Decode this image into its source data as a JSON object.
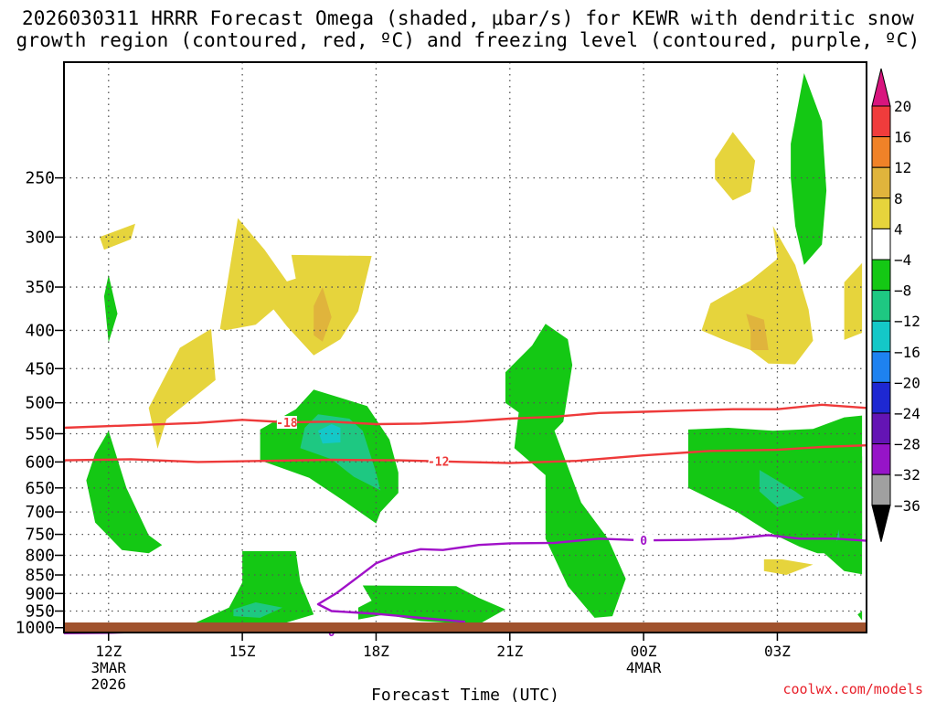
{
  "title_line1": "2026030311 HRRR Forecast Omega (shaded, μbar/s) for KEWR with dendritic snow",
  "title_line2": "growth region (contoured, red, ºC) and freezing level (contoured, purple, ºC)",
  "credit": "coolwx.com/models",
  "chart_data": {
    "type": "heatmap",
    "title": "2026030311 HRRR Forecast Omega (shaded, μbar/s) for KEWR with dendritic snow growth region (contoured, red, ºC) and freezing level (contoured, purple, ºC)",
    "xlabel": "Forecast Time (UTC)",
    "ylabel": "",
    "x_range_hours_after_12Z": [
      -1,
      17
    ],
    "y_range_hPa": [
      1015,
      175
    ],
    "x_ticks": [
      {
        "hour": 0,
        "label": "12Z",
        "sub1": "3MAR",
        "sub2": "2026"
      },
      {
        "hour": 3,
        "label": "15Z",
        "sub1": "",
        "sub2": ""
      },
      {
        "hour": 6,
        "label": "18Z",
        "sub1": "",
        "sub2": ""
      },
      {
        "hour": 9,
        "label": "21Z",
        "sub1": "",
        "sub2": ""
      },
      {
        "hour": 12,
        "label": "00Z",
        "sub1": "4MAR",
        "sub2": ""
      },
      {
        "hour": 15,
        "label": "03Z",
        "sub1": "",
        "sub2": ""
      }
    ],
    "y_ticks": [
      250,
      300,
      350,
      400,
      450,
      500,
      550,
      600,
      650,
      700,
      750,
      800,
      850,
      900,
      950,
      1000
    ],
    "colorbar": {
      "labels": [
        "20",
        "16",
        "12",
        "8",
        "4",
        "−4",
        "−8",
        "−12",
        "−16",
        "−20",
        "−24",
        "−28",
        "−32",
        "−36"
      ],
      "colors": [
        "#d8157e",
        "#f03c3c",
        "#f08228",
        "#e0b43c",
        "#e6d43c",
        "#ffffff",
        "#14c814",
        "#1ec882",
        "#14c8c8",
        "#1e82f0",
        "#1e28d2",
        "#6414b4",
        "#9614c8",
        "#a0a0a0",
        "#000000"
      ]
    },
    "omega_regions": [
      {
        "level": "4 to 8",
        "color": "#e6d43c",
        "points": [
          [
            -0.1,
            312
          ],
          [
            0.5,
            302
          ],
          [
            0.6,
            288
          ],
          [
            -0.2,
            300
          ]
        ]
      },
      {
        "level": "4 to 8",
        "color": "#e6d43c",
        "points": [
          [
            0.9,
            508
          ],
          [
            1.6,
            422
          ],
          [
            2.3,
            398
          ],
          [
            2.4,
            466
          ],
          [
            1.3,
            526
          ],
          [
            1.1,
            576
          ]
        ]
      },
      {
        "level": "4 to 8",
        "color": "#e6d43c",
        "points": [
          [
            2.5,
            398
          ],
          [
            2.9,
            283
          ],
          [
            3.5,
            312
          ],
          [
            4.0,
            344
          ],
          [
            4.2,
            341
          ],
          [
            4.1,
            317
          ],
          [
            5.9,
            318
          ],
          [
            5.6,
            377
          ],
          [
            5.2,
            411
          ],
          [
            4.6,
            432
          ],
          [
            4.0,
            395
          ],
          [
            3.7,
            375
          ],
          [
            3.3,
            393
          ],
          [
            2.6,
            400
          ]
        ]
      },
      {
        "level": "8 to 12",
        "color": "#e0b43c",
        "points": [
          [
            4.6,
            371
          ],
          [
            4.8,
            350
          ],
          [
            5.0,
            384
          ],
          [
            4.8,
            414
          ],
          [
            4.6,
            406
          ]
        ]
      },
      {
        "level": "4 to 8",
        "color": "#e6d43c",
        "points": [
          [
            13.6,
            236
          ],
          [
            14.0,
            217
          ],
          [
            14.5,
            237
          ],
          [
            14.4,
            261
          ],
          [
            14.0,
            268
          ],
          [
            13.6,
            251
          ]
        ]
      },
      {
        "level": "4 to 8",
        "color": "#e6d43c",
        "points": [
          [
            13.3,
            400
          ],
          [
            13.5,
            368
          ],
          [
            14.4,
            343
          ],
          [
            15.0,
            321
          ],
          [
            14.9,
            290
          ],
          [
            15.4,
            327
          ],
          [
            15.7,
            375
          ],
          [
            15.8,
            413
          ],
          [
            15.4,
            444
          ],
          [
            14.8,
            443
          ],
          [
            14.4,
            425
          ],
          [
            13.8,
            412
          ]
        ]
      },
      {
        "level": "8 to 12",
        "color": "#e0b43c",
        "points": [
          [
            14.3,
            380
          ],
          [
            14.7,
            387
          ],
          [
            14.8,
            425
          ],
          [
            14.4,
            425
          ],
          [
            14.4,
            400
          ]
        ]
      },
      {
        "level": "4 to 8",
        "color": "#e6d43c",
        "points": [
          [
            16.5,
            412
          ],
          [
            16.5,
            345
          ],
          [
            16.9,
            325
          ],
          [
            16.9,
            403
          ]
        ]
      },
      {
        "level": "4 to 8",
        "color": "#e6d43c",
        "points": [
          [
            14.7,
            810
          ],
          [
            15.1,
            810
          ],
          [
            15.8,
            823
          ],
          [
            15.2,
            850
          ],
          [
            14.7,
            840
          ]
        ]
      },
      {
        "level": "-4 to -8",
        "color": "#14c814",
        "points": [
          [
            -0.1,
            360
          ],
          [
            0.0,
            337
          ],
          [
            0.2,
            380
          ],
          [
            0.0,
            415
          ]
        ]
      },
      {
        "level": "-4 to -8",
        "color": "#14c814",
        "points": [
          [
            -0.5,
            635
          ],
          [
            -0.3,
            585
          ],
          [
            0.0,
            545
          ],
          [
            0.4,
            650
          ],
          [
            0.9,
            752
          ],
          [
            1.2,
            775
          ],
          [
            0.9,
            795
          ],
          [
            0.3,
            787
          ],
          [
            -0.3,
            723
          ]
        ]
      },
      {
        "level": "-4 to -8",
        "color": "#14c814",
        "points": [
          [
            3.4,
            543
          ],
          [
            4.2,
            510
          ],
          [
            4.6,
            480
          ],
          [
            5.8,
            505
          ],
          [
            6.3,
            560
          ],
          [
            6.5,
            620
          ],
          [
            6.5,
            660
          ],
          [
            6.1,
            700
          ],
          [
            6.0,
            725
          ],
          [
            5.3,
            678
          ],
          [
            4.5,
            630
          ],
          [
            3.4,
            597
          ]
        ]
      },
      {
        "level": "-8 to -12",
        "color": "#1ec882",
        "points": [
          [
            4.4,
            540
          ],
          [
            4.7,
            518
          ],
          [
            5.4,
            525
          ],
          [
            5.7,
            545
          ],
          [
            6.0,
            620
          ],
          [
            6.1,
            655
          ],
          [
            5.5,
            628
          ],
          [
            5.0,
            595
          ],
          [
            4.3,
            575
          ]
        ]
      },
      {
        "level": "-12 to -16",
        "color": "#14c8c8",
        "points": [
          [
            4.7,
            545
          ],
          [
            5.0,
            534
          ],
          [
            5.2,
            540
          ],
          [
            5.2,
            565
          ],
          [
            4.8,
            567
          ]
        ]
      },
      {
        "level": "-4 to -8",
        "color": "#14c814",
        "points": [
          [
            1.7,
            1000
          ],
          [
            2.7,
            940
          ],
          [
            3.0,
            870
          ],
          [
            3.0,
            790
          ],
          [
            4.2,
            790
          ],
          [
            4.3,
            868
          ],
          [
            4.6,
            960
          ],
          [
            3.6,
            1000
          ],
          [
            3.2,
            988
          ],
          [
            2.7,
            1005
          ],
          [
            2.0,
            1005
          ]
        ]
      },
      {
        "level": "-8 to -12",
        "color": "#1ec882",
        "points": [
          [
            2.8,
            945
          ],
          [
            3.3,
            925
          ],
          [
            3.9,
            940
          ],
          [
            3.4,
            970
          ],
          [
            2.8,
            965
          ]
        ]
      },
      {
        "level": "-4 to -8",
        "color": "#14c814",
        "points": [
          [
            5.7,
            878
          ],
          [
            7.8,
            880
          ],
          [
            8.3,
            912
          ],
          [
            8.9,
            945
          ],
          [
            8.3,
            990
          ],
          [
            7.0,
            980
          ],
          [
            6.2,
            960
          ],
          [
            5.6,
            975
          ],
          [
            5.6,
            940
          ],
          [
            5.9,
            920
          ]
        ]
      },
      {
        "level": "-4 to -8",
        "color": "#14c814",
        "points": [
          [
            8.9,
            455
          ],
          [
            9.5,
            419
          ],
          [
            9.8,
            392
          ],
          [
            10.3,
            411
          ],
          [
            10.4,
            445
          ],
          [
            10.2,
            530
          ],
          [
            10.0,
            545
          ],
          [
            10.6,
            680
          ],
          [
            11.2,
            760
          ],
          [
            11.6,
            860
          ],
          [
            11.3,
            965
          ],
          [
            10.9,
            970
          ],
          [
            10.3,
            880
          ],
          [
            9.8,
            760
          ],
          [
            9.8,
            700
          ],
          [
            9.8,
            625
          ],
          [
            9.1,
            575
          ],
          [
            9.2,
            515
          ],
          [
            8.9,
            500
          ]
        ]
      },
      {
        "level": "-4 to -8",
        "color": "#14c814",
        "points": [
          [
            14.9,
            545
          ],
          [
            15.8,
            542
          ],
          [
            16.5,
            523
          ],
          [
            16.9,
            520
          ],
          [
            16.9,
            760
          ],
          [
            16.4,
            795
          ],
          [
            15.9,
            795
          ],
          [
            15.5,
            779
          ],
          [
            14.8,
            744
          ],
          [
            14.1,
            700
          ],
          [
            13.0,
            650
          ],
          [
            13.0,
            543
          ],
          [
            13.9,
            540
          ]
        ]
      },
      {
        "level": "-8 to -12",
        "color": "#1ec882",
        "points": [
          [
            14.6,
            615
          ],
          [
            15.4,
            657
          ],
          [
            15.6,
            670
          ],
          [
            15.0,
            690
          ],
          [
            14.6,
            657
          ]
        ]
      },
      {
        "level": "-8 to -12",
        "color": "#1ec882",
        "points": [
          [
            16.4,
            725
          ],
          [
            16.9,
            725
          ],
          [
            16.9,
            780
          ],
          [
            16.3,
            778
          ]
        ]
      },
      {
        "level": "-4 to -8",
        "color": "#14c814",
        "points": [
          [
            16.2,
            625
          ],
          [
            16.7,
            590
          ],
          [
            16.9,
            590
          ],
          [
            16.9,
            848
          ],
          [
            16.5,
            840
          ],
          [
            16.0,
            790
          ],
          [
            16.4,
            760
          ]
        ]
      },
      {
        "level": "-4 to -8",
        "color": "#14c814",
        "points": [
          [
            15.3,
            225
          ],
          [
            15.6,
            181
          ],
          [
            16.0,
            210
          ],
          [
            16.1,
            260
          ],
          [
            16.0,
            307
          ],
          [
            15.6,
            327
          ],
          [
            15.4,
            290
          ],
          [
            15.3,
            250
          ]
        ]
      },
      {
        "level": "-4 to -8",
        "color": "#14c814",
        "points": [
          [
            16.8,
            960
          ],
          [
            16.9,
            950
          ],
          [
            16.9,
            978
          ]
        ]
      }
    ],
    "dendritic_contours": [
      {
        "label": "-18",
        "label_hour": 4.0,
        "color": "#ee3a3a",
        "points": [
          [
            -1,
            540
          ],
          [
            0.5,
            536
          ],
          [
            2.0,
            532
          ],
          [
            3.0,
            527
          ],
          [
            4.0,
            531
          ],
          [
            5.0,
            530
          ],
          [
            6.0,
            534
          ],
          [
            7.0,
            533
          ],
          [
            8.0,
            530
          ],
          [
            9.0,
            525
          ],
          [
            10.0,
            522
          ],
          [
            11.0,
            516
          ],
          [
            12.0,
            514
          ],
          [
            13.0,
            512
          ],
          [
            14.0,
            510
          ],
          [
            15.0,
            510
          ],
          [
            16.0,
            503
          ],
          [
            17.0,
            508
          ]
        ]
      },
      {
        "label": "-12",
        "label_hour": 7.4,
        "color": "#ee3a3a",
        "points": [
          [
            -1,
            597
          ],
          [
            0.5,
            595
          ],
          [
            2.0,
            600
          ],
          [
            3.5,
            598
          ],
          [
            5.0,
            596
          ],
          [
            6.5,
            597
          ],
          [
            8.0,
            600
          ],
          [
            9.0,
            602
          ],
          [
            10.5,
            598
          ],
          [
            12.0,
            588
          ],
          [
            13.5,
            580
          ],
          [
            15.0,
            578
          ],
          [
            16.0,
            573
          ],
          [
            17.0,
            570
          ]
        ]
      }
    ],
    "freezing_level_contours": [
      {
        "label": "0",
        "label_hour": 12.0,
        "color": "#a011c8",
        "points": [
          [
            17.0,
            765
          ],
          [
            16.3,
            760
          ],
          [
            15.5,
            760
          ],
          [
            14.8,
            752
          ],
          [
            14.0,
            760
          ],
          [
            13.0,
            763
          ],
          [
            12.0,
            764
          ],
          [
            11.0,
            760
          ],
          [
            10.0,
            770
          ],
          [
            9.0,
            771
          ],
          [
            8.3,
            775
          ],
          [
            7.5,
            787
          ],
          [
            7.0,
            785
          ],
          [
            6.5,
            798
          ],
          [
            6.0,
            820
          ],
          [
            5.6,
            855
          ],
          [
            5.1,
            900
          ],
          [
            4.7,
            930
          ],
          [
            5.0,
            950
          ],
          [
            6.0,
            958
          ],
          [
            7.0,
            970
          ],
          [
            8.0,
            982
          ]
        ]
      },
      {
        "label": "0",
        "label_hour": 5.0,
        "color": "#a011c8",
        "points": [
          [
            -1,
            1017
          ],
          [
            0.0,
            1016
          ],
          [
            1.0,
            1012
          ],
          [
            2.0,
            1000
          ],
          [
            3.0,
            1006
          ],
          [
            4.0,
            1011
          ],
          [
            5.0,
            1012
          ],
          [
            6.0,
            1008
          ],
          [
            7.0,
            1000
          ],
          [
            8.0,
            990
          ],
          [
            8.6,
            988
          ]
        ]
      }
    ]
  }
}
